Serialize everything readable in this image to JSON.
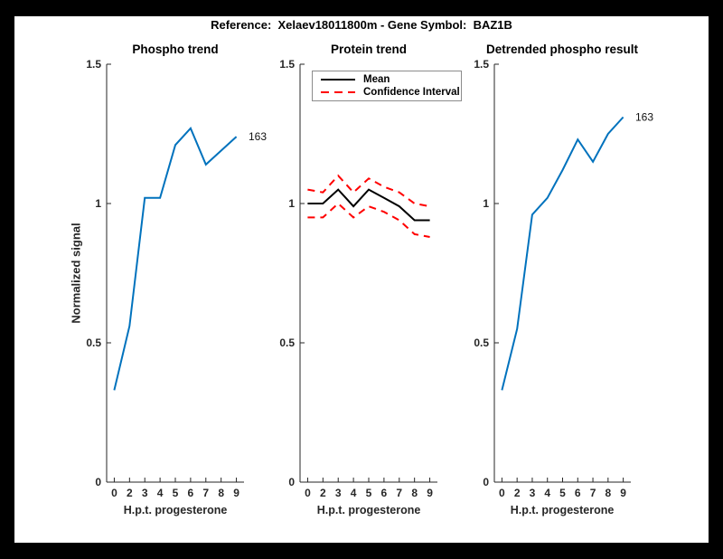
{
  "figure": {
    "title": "Reference:  Xelaev18011800m - Gene Symbol:  BAZ1B",
    "frame_color": "#000000",
    "canvas_color": "#ffffff",
    "axis_color": "#262626"
  },
  "chart_data": [
    {
      "type": "line",
      "title": "Phospho trend",
      "xlabel": "H.p.t. progesterone",
      "ylabel": "Normalized signal",
      "categories": [
        "0",
        "2",
        "3",
        "4",
        "5",
        "6",
        "7",
        "8",
        "9"
      ],
      "ylim": [
        0,
        1.5
      ],
      "y_ticks": [
        0,
        0.5,
        1,
        1.5
      ],
      "grid": false,
      "series": [
        {
          "name": "Phospho signal",
          "color": "#0072BD",
          "style": "solid",
          "values": [
            0.33,
            0.56,
            1.02,
            1.02,
            1.21,
            1.27,
            1.14,
            1.19,
            1.24
          ]
        }
      ],
      "end_label": "163"
    },
    {
      "type": "line",
      "title": "Protein trend",
      "xlabel": "H.p.t. progesterone",
      "ylabel": "",
      "categories": [
        "0",
        "2",
        "3",
        "4",
        "5",
        "6",
        "7",
        "8",
        "9"
      ],
      "ylim": [
        0,
        1.5
      ],
      "y_ticks": [
        0,
        0.5,
        1,
        1.5
      ],
      "grid": false,
      "legend_position": "northwest",
      "legend": {
        "items": [
          {
            "label": "Mean",
            "color": "#000000",
            "style": "solid"
          },
          {
            "label": "Confidence Interval",
            "color": "#FF0000",
            "style": "dashed"
          }
        ]
      },
      "series": [
        {
          "name": "Mean",
          "color": "#000000",
          "style": "solid",
          "values": [
            1.0,
            1.0,
            1.05,
            0.99,
            1.05,
            1.02,
            0.99,
            0.94,
            0.94
          ]
        },
        {
          "name": "Confidence Interval upper",
          "color": "#FF0000",
          "style": "dashed",
          "values": [
            1.05,
            1.04,
            1.1,
            1.04,
            1.09,
            1.06,
            1.04,
            1.0,
            0.99
          ]
        },
        {
          "name": "Confidence Interval lower",
          "color": "#FF0000",
          "style": "dashed",
          "values": [
            0.95,
            0.95,
            1.0,
            0.95,
            0.99,
            0.97,
            0.94,
            0.89,
            0.88
          ]
        }
      ]
    },
    {
      "type": "line",
      "title": "Detrended phospho result",
      "xlabel": "H.p.t. progesterone",
      "ylabel": "",
      "categories": [
        "0",
        "2",
        "3",
        "4",
        "5",
        "6",
        "7",
        "8",
        "9"
      ],
      "ylim": [
        0,
        1.5
      ],
      "y_ticks": [
        0,
        0.5,
        1,
        1.5
      ],
      "grid": false,
      "series": [
        {
          "name": "Detrended phospho signal",
          "color": "#0072BD",
          "style": "solid",
          "values": [
            0.33,
            0.55,
            0.96,
            1.02,
            1.12,
            1.23,
            1.15,
            1.25,
            1.31
          ]
        }
      ],
      "end_label": "163"
    }
  ]
}
